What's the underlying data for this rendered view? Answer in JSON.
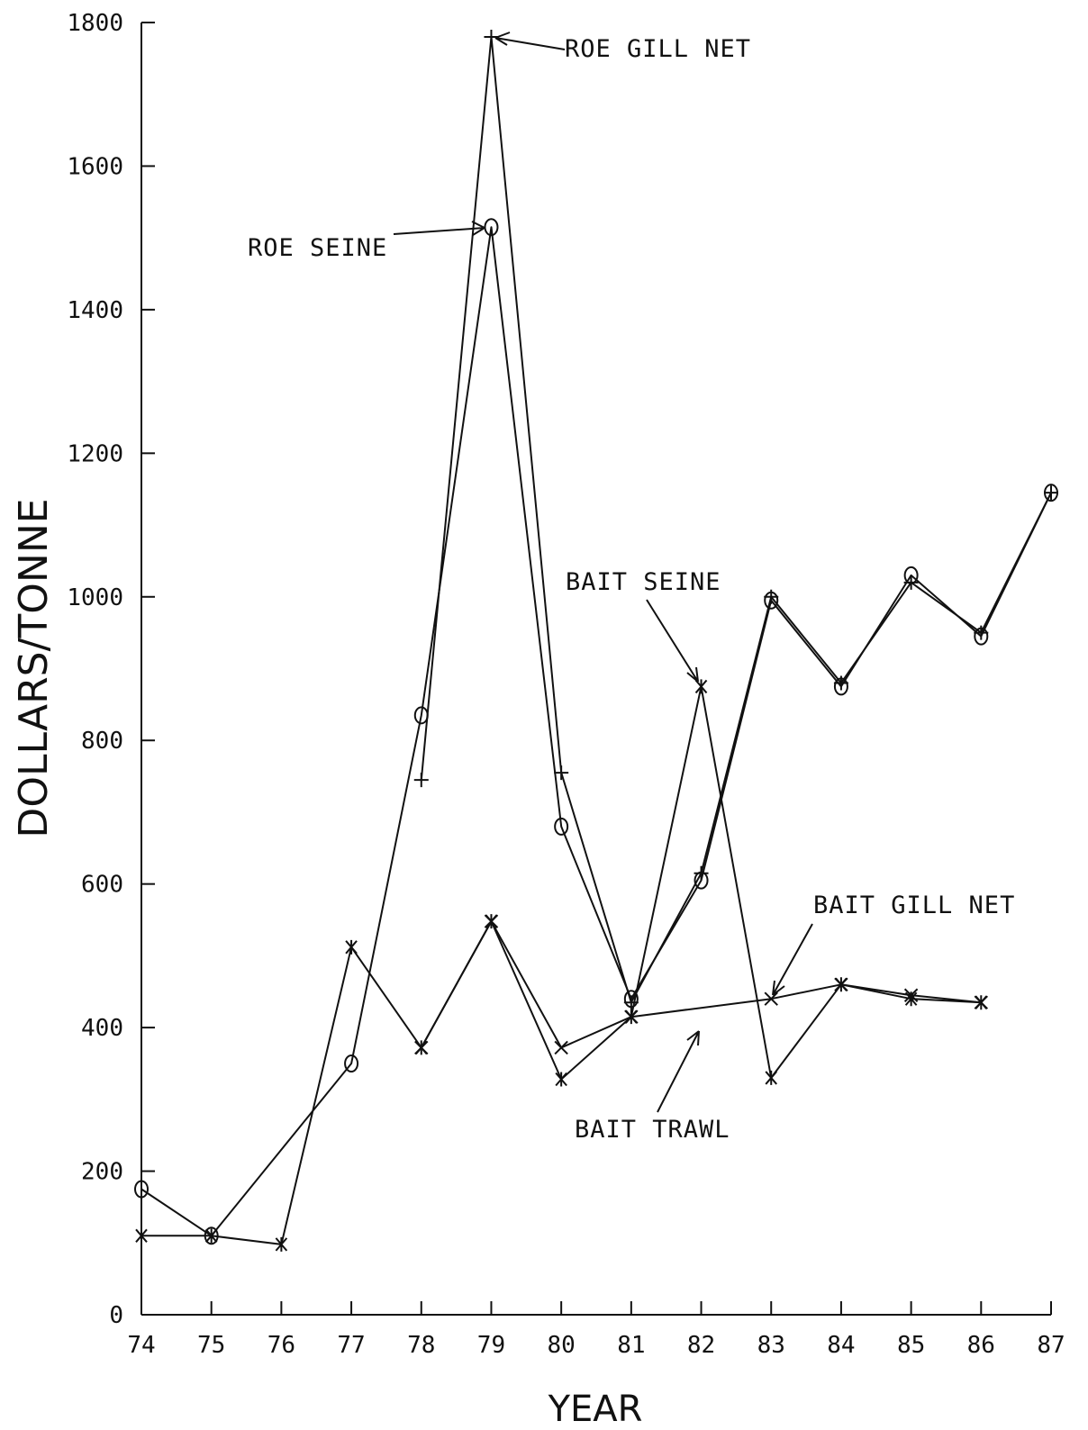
{
  "chart_data": {
    "type": "line",
    "xlabel": "YEAR",
    "ylabel": "DOLLARS/TONNE",
    "xlim": [
      74,
      87
    ],
    "ylim": [
      0,
      1800
    ],
    "x_ticks": [
      74,
      75,
      76,
      77,
      78,
      79,
      80,
      81,
      82,
      83,
      84,
      85,
      86,
      87
    ],
    "y_ticks": [
      0,
      200,
      400,
      600,
      800,
      1000,
      1200,
      1400,
      1600,
      1800
    ],
    "x_tick_labels": [
      "74",
      "75",
      "76",
      "77",
      "78",
      "79",
      "80",
      "81",
      "82",
      "83",
      "84",
      "85",
      "86",
      "87"
    ],
    "y_tick_labels": [
      "0",
      "200",
      "400",
      "600",
      "800",
      "1000",
      "1200",
      "1400",
      "1600",
      "1800"
    ],
    "grid": false,
    "series": [
      {
        "marker": "circle",
        "points": [
          [
            74,
            175
          ],
          [
            75,
            110
          ],
          [
            77,
            350
          ],
          [
            78,
            835
          ],
          [
            79,
            1515
          ],
          [
            80,
            680
          ],
          [
            81,
            440
          ],
          [
            82,
            605
          ],
          [
            83,
            995
          ],
          [
            84,
            875
          ],
          [
            85,
            1030
          ],
          [
            86,
            945
          ],
          [
            87,
            1145
          ]
        ]
      },
      {
        "marker": "plus",
        "points": [
          [
            78,
            745
          ],
          [
            79,
            1780
          ],
          [
            80,
            755
          ],
          [
            81,
            435
          ],
          [
            82,
            615
          ],
          [
            83,
            1000
          ],
          [
            84,
            880
          ],
          [
            85,
            1020
          ],
          [
            86,
            950
          ],
          [
            87,
            1145
          ]
        ]
      },
      {
        "marker": "star",
        "points": [
          [
            74,
            110
          ],
          [
            75,
            110
          ],
          [
            76,
            98
          ],
          [
            77,
            512
          ],
          [
            78,
            372
          ],
          [
            79,
            548
          ],
          [
            80,
            328
          ],
          [
            81,
            415
          ],
          [
            82,
            875
          ],
          [
            83,
            330
          ],
          [
            84,
            460
          ],
          [
            85,
            440
          ],
          [
            86,
            435
          ]
        ]
      },
      {
        "marker": "x",
        "points": [
          [
            78,
            372
          ],
          [
            79,
            548
          ],
          [
            80,
            372
          ],
          [
            81,
            415
          ],
          [
            83,
            440
          ],
          [
            84,
            460
          ],
          [
            85,
            445
          ],
          [
            86,
            435
          ]
        ]
      }
    ],
    "annotations": [
      {
        "text": "ROE GILL NET"
      },
      {
        "text": "ROE SEINE"
      },
      {
        "text": "BAIT SEINE"
      },
      {
        "text": "BAIT GILL NET"
      },
      {
        "text": "BAIT TRAWL"
      }
    ]
  }
}
